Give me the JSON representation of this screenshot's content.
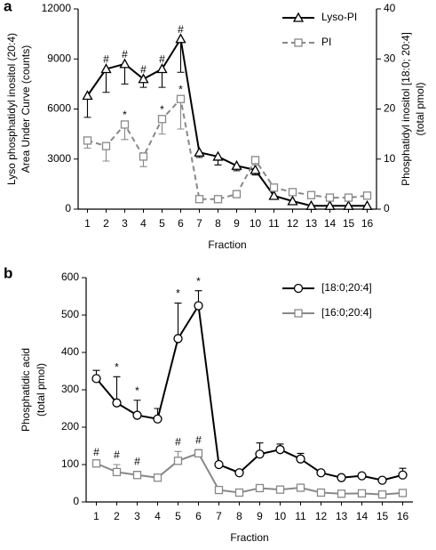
{
  "chart_data": [
    {
      "type": "line",
      "panel_label": "a",
      "xlabel": "Fraction",
      "ylabel": [
        "Lyso phosphatidyl inositol (20:4)",
        "Area Under Curve (counts)"
      ],
      "y2label": [
        "Phosphatidyl inositol  [18:0; 20:4]",
        "(total pmol)"
      ],
      "categories": [
        "1",
        "2",
        "3",
        "4",
        "5",
        "6",
        "7",
        "8",
        "9",
        "10",
        "11",
        "12",
        "13",
        "14",
        "15",
        "16"
      ],
      "ylim": [
        0,
        12000
      ],
      "yticks": [
        0,
        3000,
        6000,
        9000,
        12000
      ],
      "y2lim": [
        0,
        40
      ],
      "y2ticks": [
        0,
        10,
        20,
        30,
        40
      ],
      "legend": "upper right",
      "series": [
        {
          "name": "Lyso-PI",
          "color": "#000000",
          "marker": "triangle",
          "dashed": false,
          "error_direction": "down",
          "values": [
            6800,
            8400,
            8700,
            7800,
            8400,
            10200,
            3400,
            3150,
            2600,
            2350,
            800,
            480,
            200,
            200,
            200,
            200
          ],
          "errors": [
            1300,
            1400,
            1200,
            500,
            1100,
            2000,
            300,
            500,
            300,
            300,
            200,
            200,
            100,
            100,
            100,
            100
          ],
          "annotations": [
            {
              "x": "2",
              "text": "#"
            },
            {
              "x": "3",
              "text": "#"
            },
            {
              "x": "4",
              "text": "#"
            },
            {
              "x": "5",
              "text": "#"
            },
            {
              "x": "6",
              "text": "#"
            }
          ]
        },
        {
          "name": "PI",
          "color": "#888888",
          "axis": "y2",
          "marker": "square",
          "dashed": true,
          "error_direction": "down",
          "values": [
            13.7,
            12.6,
            16.9,
            10.5,
            18,
            22,
            2,
            2,
            3,
            9.8,
            4.3,
            3.4,
            2.8,
            2.3,
            2.3,
            2.7
          ],
          "errors": [
            1.5,
            3,
            3,
            2,
            3,
            6,
            0.3,
            0.3,
            0.5,
            1,
            0.5,
            0.3,
            0.3,
            0.3,
            0.3,
            0.3
          ],
          "annotations": [
            {
              "x": "3",
              "text": "*"
            },
            {
              "x": "5",
              "text": "*"
            },
            {
              "x": "6",
              "text": "*"
            }
          ]
        }
      ]
    },
    {
      "type": "line",
      "panel_label": "b",
      "xlabel": "Fraction",
      "ylabel": [
        "Phosphatidic acid",
        "(total pmol)"
      ],
      "categories": [
        "1",
        "2",
        "3",
        "4",
        "5",
        "6",
        "7",
        "8",
        "9",
        "10",
        "11",
        "12",
        "13",
        "14",
        "15",
        "16"
      ],
      "ylim": [
        0,
        600
      ],
      "yticks": [
        0,
        100,
        200,
        300,
        400,
        500,
        600
      ],
      "legend": "upper right",
      "series": [
        {
          "name": "[18:0;20:4]",
          "color": "#000000",
          "marker": "circle",
          "dashed": false,
          "error_direction": "up",
          "values": [
            330,
            265,
            232,
            222,
            437,
            525,
            100,
            78,
            128,
            140,
            115,
            78,
            65,
            70,
            58,
            72
          ],
          "errors": [
            22,
            70,
            40,
            28,
            95,
            40,
            5,
            5,
            30,
            15,
            15,
            5,
            5,
            5,
            5,
            18
          ],
          "annotations": [
            {
              "x": "2",
              "text": "*"
            },
            {
              "x": "3",
              "text": "*"
            },
            {
              "x": "5",
              "text": "*"
            },
            {
              "x": "6",
              "text": "*"
            }
          ]
        },
        {
          "name": "[16:0;20:4]",
          "color": "#888888",
          "marker": "square",
          "dashed": false,
          "error_direction": "up",
          "values": [
            103,
            80,
            72,
            65,
            110,
            130,
            32,
            25,
            37,
            33,
            38,
            25,
            22,
            23,
            20,
            24
          ],
          "errors": [
            5,
            20,
            10,
            5,
            25,
            10,
            3,
            3,
            5,
            5,
            5,
            3,
            3,
            3,
            3,
            3
          ],
          "annotations": [
            {
              "x": "1",
              "text": "#"
            },
            {
              "x": "2",
              "text": "#"
            },
            {
              "x": "3",
              "text": "#"
            },
            {
              "x": "5",
              "text": "#"
            },
            {
              "x": "6",
              "text": "#"
            }
          ]
        }
      ]
    }
  ]
}
